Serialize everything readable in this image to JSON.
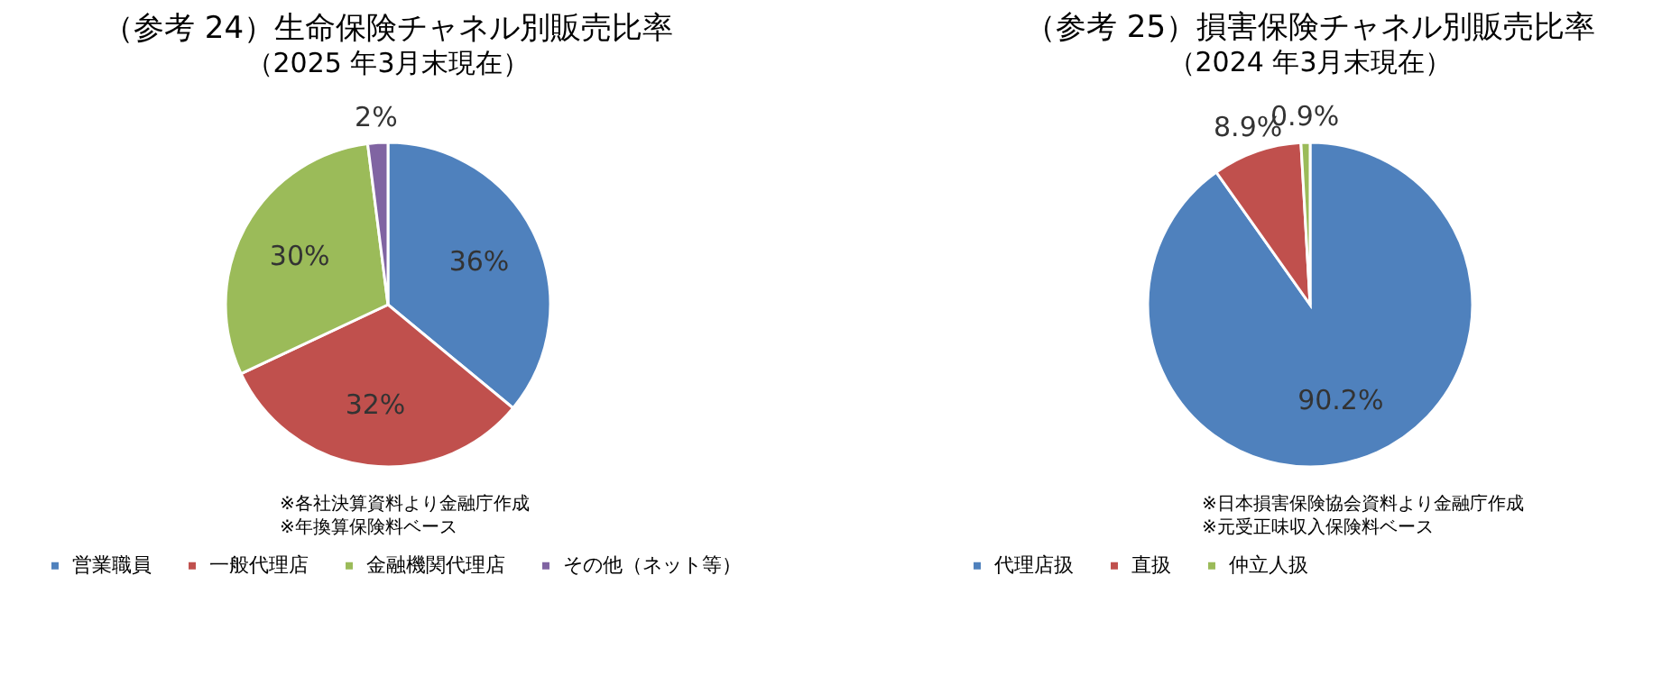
{
  "chart_data": [
    {
      "type": "pie",
      "title": "（参考 24）生命保険チャネル別販売比率",
      "subtitle": "（2025 年3月末現在）",
      "categories": [
        "営業職員",
        "一般代理店",
        "金融機関代理店",
        "その他（ネット等）"
      ],
      "values": [
        36,
        32,
        30,
        2
      ],
      "colors": [
        "#4f81bd",
        "#c0504d",
        "#9bbb59",
        "#8064a2"
      ],
      "value_labels": [
        "36%",
        "32%",
        "30%",
        "2%"
      ],
      "legend": "bottom",
      "annotations": [
        "※各社決算資料より金融庁作成",
        "※年換算保険料ベース"
      ]
    },
    {
      "type": "pie",
      "title": "（参考 25）損害保険チャネル別販売比率",
      "subtitle": "（2024 年3月末現在）",
      "categories": [
        "代理店扱",
        "直扱",
        "仲立人扱"
      ],
      "values": [
        90.2,
        8.9,
        0.9
      ],
      "colors": [
        "#4f81bd",
        "#c0504d",
        "#9bbb59"
      ],
      "value_labels": [
        "90.2%",
        "8.9%",
        "0.9%"
      ],
      "legend": "bottom",
      "annotations": [
        "※日本損害保険協会資料より金融庁作成",
        "※元受正味収入保険料ベース"
      ]
    }
  ]
}
